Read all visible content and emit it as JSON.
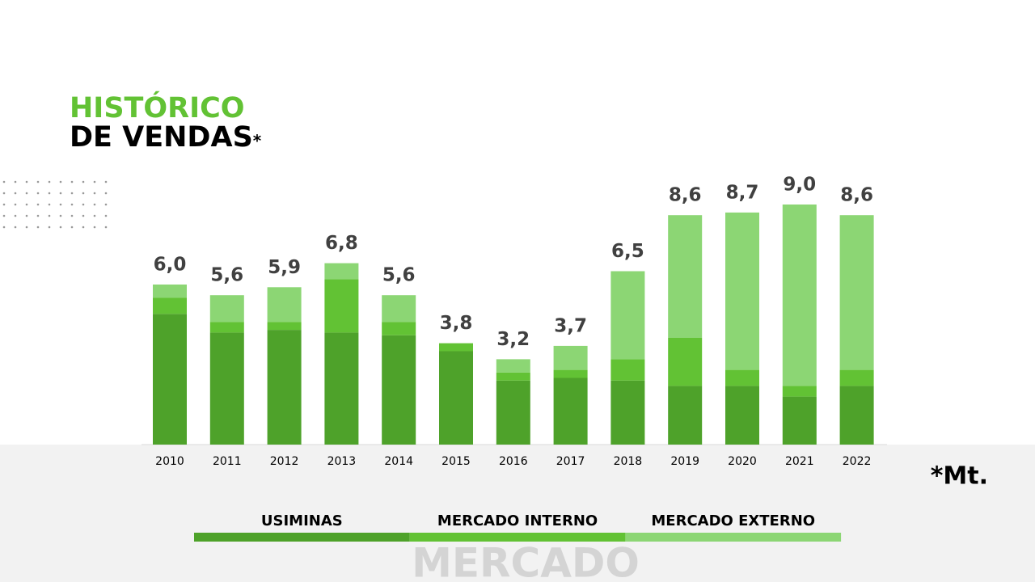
{
  "chart_data": {
    "type": "stacked_bar",
    "title": "HISTÓRICO",
    "subtitle": "DE VENDAS",
    "title_note": "*",
    "unit": "*Mt.",
    "watermark": "MERCADO",
    "categories": [
      "2010",
      "2011",
      "2012",
      "2013",
      "2014",
      "2015",
      "2016",
      "2017",
      "2018",
      "2019",
      "2020",
      "2021",
      "2022"
    ],
    "series": [
      {
        "name": "USIMINAS",
        "color": "#4ea22a",
        "values": [
          4.9,
          4.2,
          4.3,
          4.2,
          4.1,
          3.5,
          2.4,
          2.5,
          2.4,
          2.2,
          2.2,
          1.8,
          2.2
        ]
      },
      {
        "name": "MERCADO INTERNO",
        "color": "#62c234",
        "values": [
          0.6,
          0.4,
          0.3,
          2.0,
          0.5,
          0.3,
          0.3,
          0.3,
          0.8,
          1.8,
          0.6,
          0.4,
          0.6
        ]
      },
      {
        "name": "MERCADO EXTERNO",
        "color": "#8cd674",
        "values": [
          0.5,
          1.0,
          1.3,
          0.6,
          1.0,
          0,
          0.5,
          0.9,
          3.3,
          4.6,
          5.9,
          6.8,
          5.8
        ]
      }
    ],
    "totals": [
      6.0,
      5.6,
      5.9,
      6.8,
      5.6,
      3.8,
      3.2,
      3.7,
      6.5,
      8.6,
      8.7,
      9.0,
      8.6
    ],
    "total_labels": [
      "6,0",
      "5,6",
      "5,9",
      "6,8",
      "5,6",
      "3,8",
      "3,2",
      "3,7",
      "6,5",
      "8,6",
      "8,7",
      "9,0",
      "8,6"
    ]
  }
}
